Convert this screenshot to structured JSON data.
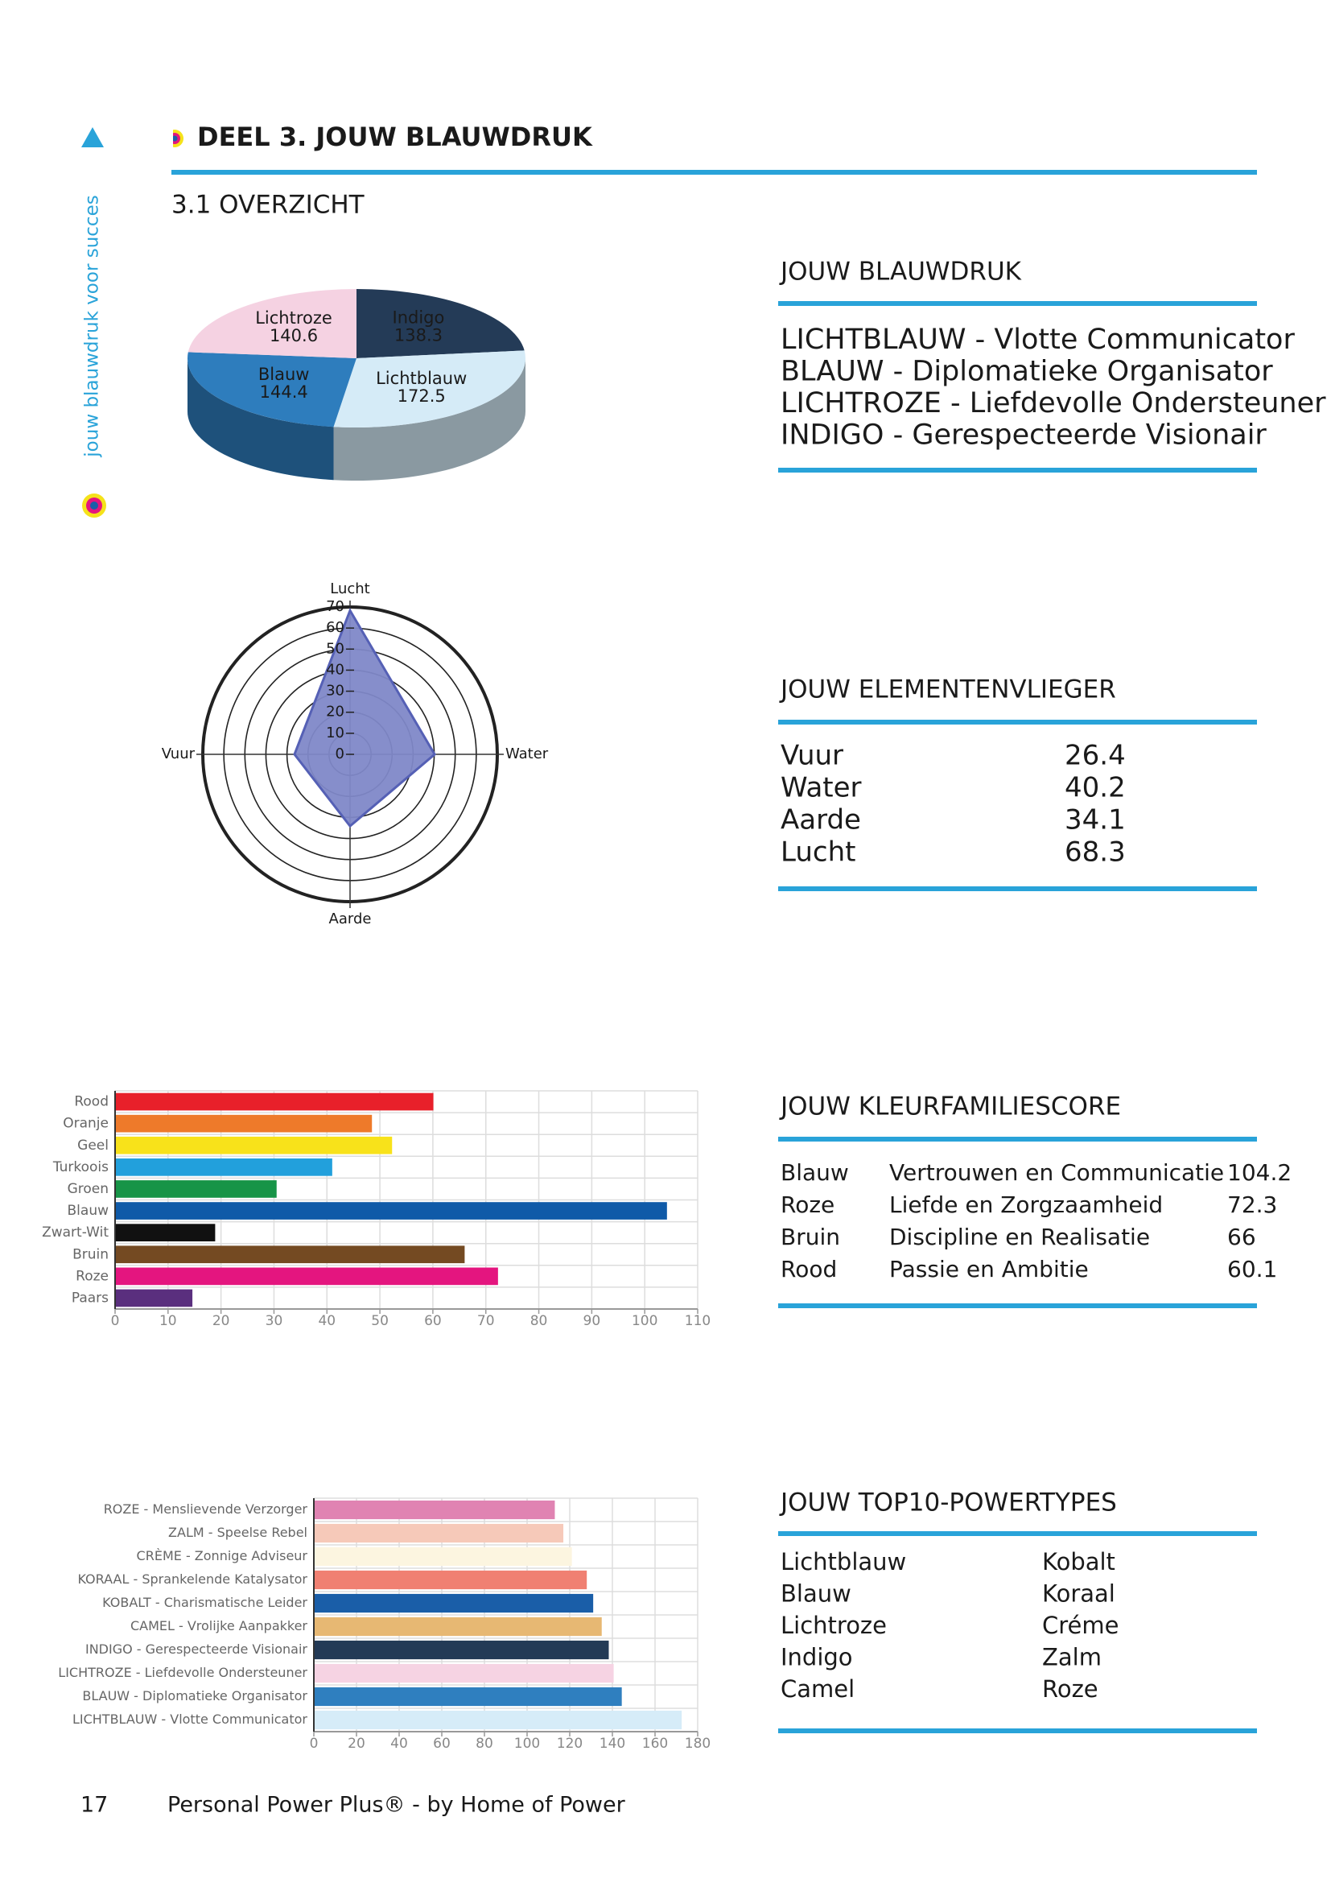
{
  "header": {
    "section": "DEEL 3. JOUW BLAUWDRUK",
    "subsection": "3.1 OVERZICHT",
    "sidebar": "jouw blauwdruk voor succes"
  },
  "chart_data": [
    {
      "type": "pie",
      "categories": [
        "Indigo",
        "Lichtblauw",
        "Blauw",
        "Lichtroze"
      ],
      "values": [
        138.3,
        172.5,
        144.4,
        140.6
      ],
      "colors": [
        "#243b57",
        "#d5ebf7",
        "#2e7dbd",
        "#f5d2e2"
      ]
    },
    {
      "type": "radar",
      "categories": [
        "Lucht",
        "Water",
        "Aarde",
        "Vuur"
      ],
      "values": [
        68.3,
        40.2,
        34.1,
        26.4
      ],
      "rlim": [
        0,
        70
      ],
      "rticks": [
        0,
        10,
        20,
        30,
        40,
        50,
        60,
        70
      ],
      "color": "#8088c8"
    },
    {
      "type": "bar",
      "horizontal": true,
      "categories": [
        "Rood",
        "Oranje",
        "Geel",
        "Turkoois",
        "Groen",
        "Blauw",
        "Zwart-Wit",
        "Bruin",
        "Roze",
        "Paars"
      ],
      "values": [
        60.1,
        48.5,
        52.3,
        41,
        30.5,
        104.2,
        18.9,
        66,
        72.3,
        14.6
      ],
      "colors": [
        "#e8202a",
        "#ee7a2a",
        "#f8e21a",
        "#22a0dc",
        "#179447",
        "#0f5aa8",
        "#111111",
        "#744a22",
        "#e4157f",
        "#5a2f7e"
      ],
      "xlim": [
        0,
        110
      ],
      "xticks": [
        0,
        10,
        20,
        30,
        40,
        50,
        60,
        70,
        80,
        90,
        100,
        110
      ],
      "grid": true
    },
    {
      "type": "bar",
      "horizontal": true,
      "categories": [
        "ROZE - Menslievende Verzorger",
        "ZALM - Speelse Rebel",
        "CRÈME - Zonnige Adviseur",
        "KORAAL - Sprankelende Katalysator",
        "KOBALT - Charismatische Leider",
        "CAMEL - Vrolijke Aanpakker",
        "INDIGO - Gerespecteerde Visionair",
        "LICHTROZE - Liefdevolle Ondersteuner",
        "BLAUW - Diplomatieke Organisator",
        "LICHTBLAUW - Vlotte Communicator"
      ],
      "values": [
        113,
        117,
        121,
        128,
        131,
        135,
        138.3,
        140.6,
        144.4,
        172.5
      ],
      "colors": [
        "#e083b2",
        "#f6c9b9",
        "#fcf5e0",
        "#f08072",
        "#1a5ea8",
        "#e7b873",
        "#233a56",
        "#f6d3e3",
        "#2f7fbf",
        "#d6ecf8"
      ],
      "xlim": [
        0,
        180
      ],
      "xticks": [
        0,
        20,
        40,
        60,
        80,
        100,
        120,
        140,
        160,
        180
      ],
      "grid": true
    }
  ],
  "panels": [
    {
      "title": "JOUW BLAUWDRUK",
      "rows": [
        [
          "LICHTBLAUW - Vlotte Communicator"
        ],
        [
          "BLAUW - Diplomatieke Organisator"
        ],
        [
          "LICHTROZE - Liefdevolle Ondersteuner"
        ],
        [
          "INDIGO - Gerespecteerde Visionair"
        ]
      ]
    },
    {
      "title": "JOUW ELEMENTENVLIEGER",
      "rows": [
        [
          "Vuur",
          "26.4"
        ],
        [
          "Water",
          "40.2"
        ],
        [
          "Aarde",
          "34.1"
        ],
        [
          "Lucht",
          "68.3"
        ]
      ]
    },
    {
      "title": "JOUW KLEURFAMILIESCORE",
      "rows": [
        [
          "Blauw",
          "Vertrouwen en Communicatie",
          "104.2"
        ],
        [
          "Roze",
          "Liefde en Zorgzaamheid",
          "72.3"
        ],
        [
          "Bruin",
          "Discipline en Realisatie",
          "66"
        ],
        [
          "Rood",
          "Passie en Ambitie",
          "60.1"
        ]
      ]
    },
    {
      "title": "JOUW TOP10-POWERTYPES",
      "rows": [
        [
          "Lichtblauw",
          "Kobalt"
        ],
        [
          "Blauw",
          "Koraal"
        ],
        [
          "Lichtroze",
          "Créme"
        ],
        [
          "Indigo",
          "Zalm"
        ],
        [
          "Camel",
          "Roze"
        ]
      ]
    }
  ],
  "footer": {
    "page": "17",
    "text": "Personal Power Plus® - by Home of Power"
  }
}
